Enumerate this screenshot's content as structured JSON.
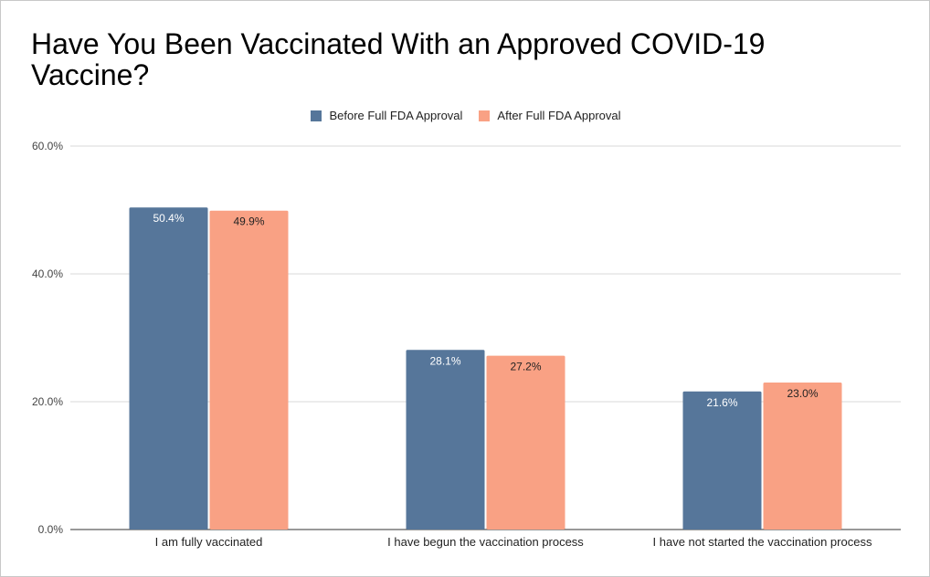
{
  "chart_data": {
    "type": "bar",
    "title": "Have You Been Vaccinated With an Approved COVID-19 Vaccine?",
    "categories": [
      "I am fully vaccinated",
      "I have begun the vaccination process",
      "I have not started the vaccination process"
    ],
    "series": [
      {
        "name": "Before Full FDA Approval",
        "values": [
          50.4,
          28.1,
          21.6
        ],
        "color": "#56769a",
        "labels": [
          "50.4%",
          "28.1%",
          "21.6%"
        ],
        "label_color": "#ffffff"
      },
      {
        "name": "After Full FDA Approval",
        "values": [
          49.9,
          27.2,
          23.0
        ],
        "color": "#f9a184",
        "labels": [
          "49.9%",
          "27.2%",
          "23.0%"
        ],
        "label_color": "#222222"
      }
    ],
    "yticks": [
      0,
      20,
      40,
      60
    ],
    "ytick_labels": [
      "0.0%",
      "20.0%",
      "40.0%",
      "60.0%"
    ],
    "ylim": [
      0,
      60
    ],
    "xlabel": "",
    "ylabel": "",
    "legend_position": "top-center",
    "grid": true
  }
}
